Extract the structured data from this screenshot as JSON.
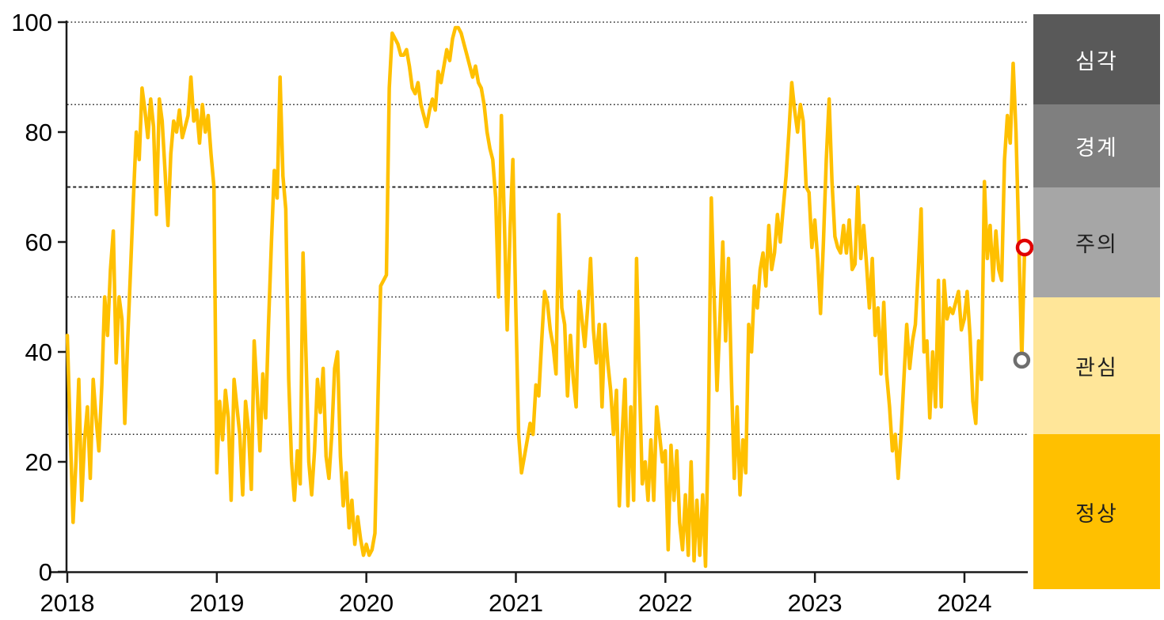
{
  "chart_data": {
    "type": "line",
    "title": "",
    "x_unit": "week",
    "x_range_years": [
      2018.0,
      2024.38
    ],
    "ylim": [
      0,
      100
    ],
    "y_axis_ticks": [
      0,
      20,
      40,
      60,
      80,
      100
    ],
    "x_axis_ticks": [
      "2018",
      "2019",
      "2020",
      "2021",
      "2022",
      "2023",
      "2024"
    ],
    "grid": "horizontal-dotted-thresholds",
    "legend_position": "right",
    "line_color": "#FFC000",
    "axis_color": "#1a1a1a",
    "gridline_color": "#262626",
    "threshold_lines": [
      {
        "value": 25
      },
      {
        "value": 50
      },
      {
        "value": 70,
        "emphasized": true
      },
      {
        "value": 85
      },
      {
        "value": 100
      }
    ],
    "legend_bands": [
      {
        "label": "심각",
        "range": [
          85,
          100
        ],
        "color": "#595959",
        "text_color": "#FFFFFF"
      },
      {
        "label": "경계",
        "range": [
          70,
          85
        ],
        "color": "#7F7F7F",
        "text_color": "#FFFFFF"
      },
      {
        "label": "주의",
        "range": [
          50,
          70
        ],
        "color": "#A6A6A6",
        "text_color": "#1f1f1f"
      },
      {
        "label": "관심",
        "range": [
          25,
          50
        ],
        "color": "#FFE699",
        "text_color": "#1f1f1f"
      },
      {
        "label": "정상",
        "range": [
          0,
          25
        ],
        "color": "#FFC000",
        "text_color": "#1f1f1f"
      }
    ],
    "end_markers": [
      {
        "offset_from_end": 0,
        "color": "#E00000",
        "radius": 9,
        "meaning": "latest-value"
      },
      {
        "offset_from_end": 1,
        "color": "#6E6E6E",
        "radius": 8.5,
        "meaning": "previous-value"
      }
    ],
    "values": [
      43,
      26,
      9,
      20,
      35,
      13,
      24,
      30,
      17,
      35,
      28,
      22,
      34,
      50,
      43,
      55,
      62,
      38,
      50,
      46,
      27,
      42,
      55,
      68,
      80,
      75,
      88,
      84,
      79,
      86,
      81,
      65,
      86,
      82,
      73,
      63,
      76,
      82,
      80,
      84,
      79,
      81,
      83,
      90,
      82,
      84,
      78,
      85,
      80,
      83,
      76,
      70,
      18,
      31,
      24,
      33,
      28,
      13,
      35,
      30,
      25,
      14,
      31,
      26,
      15,
      42,
      33,
      22,
      36,
      28,
      45,
      60,
      73,
      68,
      90,
      72,
      66,
      35,
      20,
      13,
      22,
      16,
      58,
      40,
      20,
      14,
      22,
      35,
      29,
      37,
      21,
      17,
      25,
      37,
      40,
      21,
      12,
      18,
      8,
      13,
      5,
      10,
      6,
      3,
      5,
      3,
      4,
      7,
      30,
      52,
      53,
      54,
      88,
      98,
      97,
      96,
      94,
      94,
      95,
      92,
      88,
      87,
      89,
      85,
      83,
      81,
      84,
      86,
      84,
      91,
      89,
      92,
      95,
      93,
      97,
      99,
      99,
      98,
      96,
      94,
      92,
      90,
      92,
      89,
      88,
      85,
      80,
      77,
      75,
      68,
      50,
      83,
      64,
      44,
      62,
      75,
      48,
      25,
      18,
      21,
      24,
      27,
      25,
      34,
      32,
      42,
      51,
      49,
      44,
      41,
      36,
      65,
      48,
      45,
      32,
      43,
      35,
      30,
      51,
      46,
      41,
      48,
      57,
      44,
      38,
      45,
      30,
      45,
      38,
      33,
      25,
      33,
      12,
      25,
      35,
      12,
      30,
      13,
      57,
      35,
      16,
      20,
      13,
      24,
      13,
      30,
      25,
      20,
      22,
      4,
      23,
      13,
      22,
      9,
      4,
      14,
      3,
      20,
      2,
      13,
      3,
      14,
      1,
      26,
      68,
      50,
      33,
      46,
      60,
      42,
      57,
      35,
      17,
      30,
      14,
      24,
      18,
      45,
      40,
      52,
      48,
      55,
      58,
      52,
      63,
      55,
      58,
      65,
      60,
      66,
      72,
      80,
      89,
      84,
      80,
      85,
      82,
      70,
      69,
      59,
      64,
      57,
      47,
      60,
      75,
      86,
      71,
      61,
      59,
      58,
      63,
      58,
      64,
      55,
      56,
      70,
      57,
      63,
      56,
      48,
      57,
      43,
      48,
      36,
      49,
      36,
      30,
      22,
      25,
      17,
      25,
      35,
      45,
      37,
      42,
      45,
      55,
      66,
      40,
      42,
      28,
      40,
      30,
      53,
      30,
      53,
      46,
      48,
      47,
      49,
      51,
      44,
      46,
      51,
      43,
      31,
      27,
      42,
      35,
      71,
      57,
      63,
      53,
      62,
      55,
      53,
      75,
      83,
      78,
      92.5,
      80,
      60,
      38.5,
      59
    ]
  }
}
